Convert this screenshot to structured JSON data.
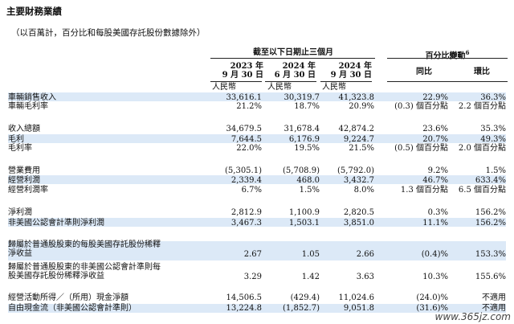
{
  "title": "主要財務業績",
  "note": "（以百萬計，百分比和每股美國存託股份數據除外）",
  "header": {
    "period_group": "截至以下日期止三個月",
    "change_group": "百分比變動",
    "change_sup": "6",
    "col1_year": "2023 年",
    "col1_date": "9 月 30 日",
    "col1_unit": "人民幣",
    "col2_year": "2024 年",
    "col2_date": "6 月 30 日",
    "col2_unit": "人民幣",
    "col3_year": "2024 年",
    "col3_date": "9 月 30 日",
    "col3_unit": "人民幣",
    "yoy": "同比",
    "qoq": "環比"
  },
  "rows": [
    {
      "label": "車輛銷售收入",
      "v1": "33,616.1",
      "v2": "30,319.7",
      "v3": "41,323.8",
      "yoy": "22.9%",
      "qoq": "36.3%"
    },
    {
      "label": "車輛毛利率",
      "v1": "21.2%",
      "v2": "18.7%",
      "v3": "20.9%",
      "yoy": "(0.3) 個百分點",
      "qoq": "2.2 個百分點"
    },
    {
      "label": "收入總額",
      "v1": "34,679.5",
      "v2": "31,678.4",
      "v3": "42,874.2",
      "yoy": "23.6%",
      "qoq": "35.3%"
    },
    {
      "label": "毛利",
      "v1": "7,644.5",
      "v2": "6,176.9",
      "v3": "9,224.7",
      "yoy": "20.7%",
      "qoq": "49.3%"
    },
    {
      "label": "毛利率",
      "v1": "22.0%",
      "v2": "19.5%",
      "v3": "21.5%",
      "yoy": "(0.5) 個百分點",
      "qoq": "2.0 個百分點"
    },
    {
      "label": "營業費用",
      "v1": "(5,305.1)",
      "v2": "(5,708.9)",
      "v3": "(5,792.0)",
      "yoy": "9.2%",
      "qoq": "1.5%"
    },
    {
      "label": "經營利潤",
      "v1": "2,339.4",
      "v2": "468.0",
      "v3": "3,432.7",
      "yoy": "46.7%",
      "qoq": "633.4%"
    },
    {
      "label": "經營利潤率",
      "v1": "6.7%",
      "v2": "1.5%",
      "v3": "8.0%",
      "yoy": "1.3 個百分點",
      "qoq": "6.5 個百分點"
    },
    {
      "label": "淨利潤",
      "v1": "2,812.9",
      "v2": "1,100.9",
      "v3": "2,820.5",
      "yoy": "0.3%",
      "qoq": "156.2%"
    },
    {
      "label": "非美國公認會計準則淨利潤",
      "v1": "3,467.3",
      "v2": "1,503.1",
      "v3": "3,851.0",
      "yoy": "11.1%",
      "qoq": "156.2%"
    },
    {
      "label": "歸屬於普通股股東的每股美國存託股份稀釋\n淨收益",
      "v1": "2.67",
      "v2": "1.05",
      "v3": "2.66",
      "yoy": "(0.4)%",
      "qoq": "153.3%"
    },
    {
      "label": "歸屬於普通股股東的非美國公認會計準則每\n股美國存託股份稀釋淨收益",
      "v1": "3.29",
      "v2": "1.42",
      "v3": "3.63",
      "yoy": "10.3%",
      "qoq": "155.6%"
    },
    {
      "label": "經營活動所得／（所用）現金淨額",
      "v1": "14,506.5",
      "v2": "(429.4)",
      "v3": "11,024.6",
      "yoy": "(24.0)%",
      "qoq": "不適用"
    },
    {
      "label": "自由現金流（非美國公認會計準則）",
      "v1": "13,224.8",
      "v2": "(1,852.7)",
      "v3": "9,051.8",
      "yoy": "(31.6)%",
      "qoq": "不適用"
    }
  ],
  "watermark": "www.365jz.com"
}
